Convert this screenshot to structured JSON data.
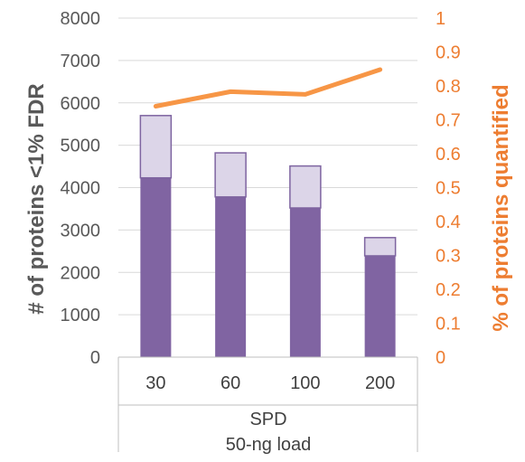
{
  "chart_data": {
    "type": "bar",
    "stacked": true,
    "categories": [
      "30",
      "60",
      "100",
      "200"
    ],
    "group_label_lines": [
      "SPD",
      "50-ng load"
    ],
    "series": [
      {
        "values": [
          4230,
          3780,
          3520,
          2390
        ],
        "color": "#8064A2"
      },
      {
        "values": [
          1470,
          1040,
          990,
          430
        ],
        "color": "#DCD5E8"
      },
      {
        "values": [
          0.74,
          0.783,
          0.775,
          0.848
        ],
        "color": "#F79646",
        "axis": "right",
        "kind": "line"
      }
    ],
    "ylabel": "# of proteins <1% FDR",
    "y2label": "% of proteins quantified",
    "ylim": [
      0,
      8000
    ],
    "y2lim": [
      0,
      1
    ],
    "yticks": [
      "0",
      "1000",
      "2000",
      "3000",
      "4000",
      "5000",
      "6000",
      "7000",
      "8000"
    ],
    "y2ticks": [
      "0",
      "0.1",
      "0.2",
      "0.3",
      "0.4",
      "0.5",
      "0.6",
      "0.7",
      "0.8",
      "0.9",
      "1"
    ],
    "grid": true,
    "legend": "none"
  }
}
